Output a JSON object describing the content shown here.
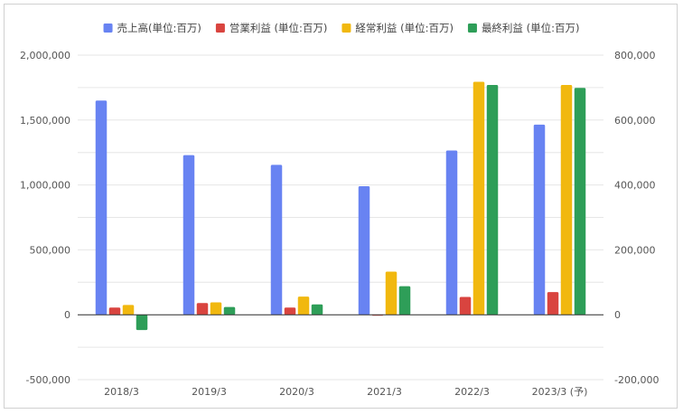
{
  "colors": {
    "series": [
      "#6883f2",
      "#d9443f",
      "#f1b80f",
      "#2e9e58"
    ],
    "grid": "#e6e6e6",
    "zero_line": "#333333",
    "text": "#555555"
  },
  "legend_position": "top",
  "chart_data": {
    "type": "bar",
    "title": "",
    "xlabel": "",
    "ylabel": "",
    "grid": true,
    "categories": [
      "2018/3",
      "2019/3",
      "2020/3",
      "2021/3",
      "2022/3",
      "2023/3 (予)"
    ],
    "left_axis": {
      "ylim": [
        -500000,
        2000000
      ],
      "ticks": [
        -500000,
        0,
        500000,
        1000000,
        1500000,
        2000000
      ],
      "tick_labels": [
        "-500,000",
        "0",
        "500,000",
        "1,000,000",
        "1,500,000",
        "2,000,000"
      ]
    },
    "right_axis": {
      "ylim": [
        -200000,
        800000
      ],
      "ticks": [
        -200000,
        0,
        200000,
        400000,
        600000,
        800000
      ],
      "tick_labels": [
        "-200,000",
        "0",
        "200,000",
        "400,000",
        "600,000",
        "800,000"
      ]
    },
    "series": [
      {
        "name": "売上高(単位:百万)",
        "axis": "left",
        "values": [
          1650000,
          1230000,
          1155000,
          990000,
          1265000,
          1465000
        ]
      },
      {
        "name": "営業利益 (単位:百万)",
        "axis": "right",
        "values": [
          22000,
          36000,
          22000,
          -3000,
          55000,
          70000
        ]
      },
      {
        "name": "経常利益 (単位:百万)",
        "axis": "right",
        "values": [
          30000,
          38000,
          56000,
          133000,
          718000,
          708000
        ]
      },
      {
        "name": "最終利益 (単位:百万)",
        "axis": "right",
        "values": [
          -47000,
          24000,
          32000,
          88000,
          708000,
          699000
        ]
      }
    ]
  }
}
